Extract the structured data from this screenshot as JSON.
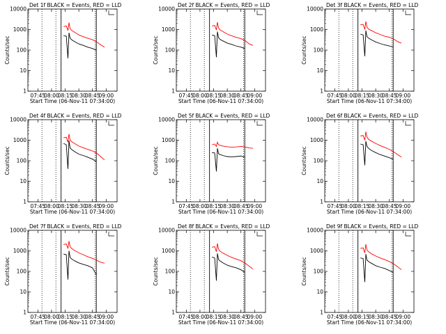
{
  "chart_data": [
    {
      "type": "line",
      "title": "Det 1f BLACK = Events, RED = LLD",
      "xlabel": "Start Time (06-Nov-11 07:34:00)",
      "ylabel": "Counts/sec",
      "x_ticks": [
        "07:45",
        "08:00",
        "08:15",
        "08:30",
        "08:45",
        "09:00"
      ],
      "y_ticks": [
        "1",
        "10",
        "100",
        "1000",
        "10000"
      ],
      "yscale": "log",
      "ylim": [
        1,
        10000
      ],
      "series": [
        {
          "color": "#000000",
          "x": [
            8.22,
            8.27,
            8.3,
            8.32,
            8.34,
            8.37,
            8.42,
            8.5,
            8.58,
            8.66,
            8.75,
            8.82
          ],
          "values": [
            500,
            480,
            40,
            700,
            380,
            320,
            260,
            200,
            170,
            140,
            120,
            100
          ]
        },
        {
          "color": "#ff0000",
          "x": [
            8.22,
            8.27,
            8.3,
            8.32,
            8.34,
            8.37,
            8.42,
            8.5,
            8.58,
            8.66,
            8.75,
            8.82,
            8.9,
            8.97
          ],
          "values": [
            1400,
            1500,
            900,
            2200,
            1100,
            900,
            750,
            550,
            450,
            380,
            320,
            260,
            180,
            140
          ]
        }
      ]
    },
    {
      "type": "line",
      "title": "Det 2f BLACK = Events, RED = LLD",
      "xlabel": "Start Time (06-Nov-11 07:34:00)",
      "ylabel": "Counts/sec",
      "x_ticks": [
        "07:45",
        "08:00",
        "08:15",
        "08:30",
        "08:45",
        "09:00"
      ],
      "y_ticks": [
        "1",
        "10",
        "100",
        "1000",
        "10000"
      ],
      "yscale": "log",
      "ylim": [
        1,
        10000
      ],
      "series": [
        {
          "color": "#000000",
          "x": [
            8.22,
            8.27,
            8.3,
            8.32,
            8.34,
            8.37,
            8.42,
            8.5,
            8.58,
            8.66,
            8.75,
            8.82
          ],
          "values": [
            550,
            500,
            45,
            800,
            400,
            330,
            280,
            220,
            190,
            160,
            140,
            120
          ]
        },
        {
          "color": "#ff0000",
          "x": [
            8.22,
            8.27,
            8.3,
            8.32,
            8.34,
            8.37,
            8.42,
            8.5,
            8.58,
            8.66,
            8.75,
            8.82,
            8.9,
            8.97
          ],
          "values": [
            1500,
            1600,
            950,
            2300,
            1200,
            950,
            800,
            600,
            500,
            420,
            360,
            300,
            200,
            170
          ]
        }
      ]
    },
    {
      "type": "line",
      "title": "Det 3f BLACK = Events, RED = LLD",
      "xlabel": "Start Time (06-Nov-11 07:34:00)",
      "ylabel": "Counts/sec",
      "x_ticks": [
        "07:45",
        "08:00",
        "08:15",
        "08:30",
        "08:45",
        "09:00"
      ],
      "y_ticks": [
        "1",
        "10",
        "100",
        "1000",
        "10000"
      ],
      "yscale": "log",
      "ylim": [
        1,
        10000
      ],
      "series": [
        {
          "color": "#000000",
          "x": [
            8.22,
            8.27,
            8.3,
            8.32,
            8.34,
            8.37,
            8.42,
            8.5,
            8.58,
            8.66,
            8.75,
            8.82
          ],
          "values": [
            600,
            550,
            50,
            900,
            450,
            380,
            320,
            250,
            210,
            180,
            160,
            140
          ]
        },
        {
          "color": "#ff0000",
          "x": [
            8.22,
            8.27,
            8.3,
            8.32,
            8.34,
            8.37,
            8.42,
            8.5,
            8.58,
            8.66,
            8.75,
            8.82,
            8.9,
            8.97
          ],
          "values": [
            1700,
            1800,
            1000,
            2500,
            1300,
            1050,
            900,
            700,
            580,
            480,
            420,
            360,
            260,
            220
          ]
        }
      ]
    },
    {
      "type": "line",
      "title": "Det 4f BLACK = Events, RED = LLD",
      "xlabel": "Start Time (06-Nov-11 07:34:00)",
      "ylabel": "Counts/sec",
      "x_ticks": [
        "07:45",
        "08:00",
        "08:15",
        "08:30",
        "08:45",
        "09:00"
      ],
      "y_ticks": [
        "1",
        "10",
        "100",
        "1000",
        "10000"
      ],
      "yscale": "log",
      "ylim": [
        1,
        10000
      ],
      "series": [
        {
          "color": "#000000",
          "x": [
            8.22,
            8.27,
            8.3,
            8.32,
            8.34,
            8.37,
            8.42,
            8.5,
            8.58,
            8.66,
            8.75,
            8.82
          ],
          "values": [
            700,
            600,
            40,
            950,
            420,
            350,
            280,
            210,
            180,
            150,
            120,
            90
          ]
        },
        {
          "color": "#ff0000",
          "x": [
            8.22,
            8.27,
            8.3,
            8.32,
            8.34,
            8.37,
            8.42,
            8.5,
            8.58,
            8.66,
            8.75,
            8.82,
            8.9,
            8.97
          ],
          "values": [
            1300,
            1400,
            800,
            2000,
            1000,
            850,
            700,
            520,
            430,
            360,
            300,
            240,
            160,
            110
          ]
        }
      ]
    },
    {
      "type": "line",
      "title": "Det 5f BLACK = Events, RED = LLD",
      "xlabel": "Start Time (06-Nov-11 07:34:00)",
      "ylabel": "Counts/sec",
      "x_ticks": [
        "07:45",
        "08:00",
        "08:15",
        "08:30",
        "08:45",
        "09:00"
      ],
      "y_ticks": [
        "1",
        "10",
        "100",
        "1000",
        "10000"
      ],
      "yscale": "log",
      "ylim": [
        1,
        10000
      ],
      "series": [
        {
          "color": "#000000",
          "x": [
            8.22,
            8.27,
            8.3,
            8.32,
            8.34,
            8.37,
            8.42,
            8.5,
            8.58,
            8.66,
            8.75,
            8.82
          ],
          "values": [
            250,
            240,
            30,
            400,
            220,
            200,
            180,
            160,
            155,
            160,
            170,
            150
          ]
        },
        {
          "color": "#ff0000",
          "x": [
            8.22,
            8.27,
            8.3,
            8.32,
            8.34,
            8.37,
            8.42,
            8.5,
            8.58,
            8.66,
            8.75,
            8.82,
            8.9,
            8.97
          ],
          "values": [
            600,
            650,
            500,
            800,
            600,
            560,
            520,
            480,
            460,
            470,
            500,
            470,
            420,
            400
          ]
        }
      ]
    },
    {
      "type": "line",
      "title": "Det 6f BLACK = Events, RED = LLD",
      "xlabel": "Start Time (06-Nov-11 07:34:00)",
      "ylabel": "Counts/sec",
      "x_ticks": [
        "07:45",
        "08:00",
        "08:15",
        "08:30",
        "08:45",
        "09:00"
      ],
      "y_ticks": [
        "1",
        "10",
        "100",
        "1000",
        "10000"
      ],
      "yscale": "log",
      "ylim": [
        1,
        10000
      ],
      "series": [
        {
          "color": "#000000",
          "x": [
            8.22,
            8.27,
            8.3,
            8.32,
            8.34,
            8.37,
            8.42,
            8.5,
            8.58,
            8.66,
            8.75,
            8.82
          ],
          "values": [
            650,
            600,
            60,
            900,
            500,
            400,
            320,
            250,
            200,
            170,
            140,
            120
          ]
        },
        {
          "color": "#ff0000",
          "x": [
            8.22,
            8.27,
            8.3,
            8.32,
            8.34,
            8.37,
            8.42,
            8.5,
            8.58,
            8.66,
            8.75,
            8.82,
            8.9,
            8.97
          ],
          "values": [
            1600,
            1700,
            1000,
            2600,
            1400,
            1100,
            900,
            700,
            550,
            450,
            360,
            280,
            200,
            150
          ]
        }
      ]
    },
    {
      "type": "line",
      "title": "Det 7f BLACK = Events, RED = LLD",
      "xlabel": "Start Time (06-Nov-11 07:34:00)",
      "ylabel": "Counts/sec",
      "x_ticks": [
        "07:45",
        "08:00",
        "08:15",
        "08:30",
        "08:45",
        "09:00"
      ],
      "y_ticks": [
        "1",
        "10",
        "100",
        "1000",
        "10000"
      ],
      "yscale": "log",
      "ylim": [
        1,
        10000
      ],
      "series": [
        {
          "color": "#000000",
          "x": [
            8.22,
            8.27,
            8.3,
            8.32,
            8.34,
            8.37,
            8.42,
            8.5,
            8.58,
            8.66,
            8.75,
            8.82
          ],
          "values": [
            700,
            650,
            40,
            1000,
            480,
            400,
            330,
            260,
            220,
            190,
            150,
            70
          ]
        },
        {
          "color": "#ff0000",
          "x": [
            8.22,
            8.27,
            8.3,
            8.32,
            8.34,
            8.37,
            8.42,
            8.5,
            8.58,
            8.66,
            8.75,
            8.82,
            8.9,
            8.97
          ],
          "values": [
            2000,
            2200,
            1300,
            3000,
            1600,
            1300,
            1050,
            800,
            650,
            520,
            430,
            350,
            280,
            250
          ]
        }
      ]
    },
    {
      "type": "line",
      "title": "Det 8f BLACK = Events, RED = LLD",
      "xlabel": "Start Time (06-Nov-11 07:34:00)",
      "ylabel": "Counts/sec",
      "x_ticks": [
        "07:45",
        "08:00",
        "08:15",
        "08:30",
        "08:45",
        "09:00"
      ],
      "y_ticks": [
        "1",
        "10",
        "100",
        "1000",
        "10000"
      ],
      "yscale": "log",
      "ylim": [
        1,
        10000
      ],
      "series": [
        {
          "color": "#000000",
          "x": [
            8.22,
            8.27,
            8.3,
            8.32,
            8.34,
            8.37,
            8.42,
            8.5,
            8.58,
            8.66,
            8.75,
            8.82
          ],
          "values": [
            500,
            450,
            35,
            750,
            380,
            320,
            260,
            200,
            170,
            150,
            120,
            90
          ]
        },
        {
          "color": "#ff0000",
          "x": [
            8.22,
            8.27,
            8.3,
            8.32,
            8.34,
            8.37,
            8.42,
            8.5,
            8.58,
            8.66,
            8.75,
            8.82,
            8.9,
            8.97
          ],
          "values": [
            1500,
            1600,
            900,
            2300,
            1200,
            950,
            780,
            600,
            480,
            400,
            330,
            260,
            180,
            130
          ]
        }
      ]
    },
    {
      "type": "line",
      "title": "Det 9f BLACK = Events, RED = LLD",
      "xlabel": "Start Time (06-Nov-11 07:34:00)",
      "ylabel": "Counts/sec",
      "x_ticks": [
        "07:45",
        "08:00",
        "08:15",
        "08:30",
        "08:45",
        "09:00"
      ],
      "y_ticks": [
        "1",
        "10",
        "100",
        "1000",
        "10000"
      ],
      "yscale": "log",
      "ylim": [
        1,
        10000
      ],
      "series": [
        {
          "color": "#000000",
          "x": [
            8.22,
            8.27,
            8.3,
            8.32,
            8.34,
            8.37,
            8.42,
            8.5,
            8.58,
            8.66,
            8.75,
            8.82
          ],
          "values": [
            450,
            420,
            30,
            700,
            350,
            300,
            250,
            190,
            160,
            140,
            110,
            90
          ]
        },
        {
          "color": "#ff0000",
          "x": [
            8.22,
            8.27,
            8.3,
            8.32,
            8.34,
            8.37,
            8.42,
            8.5,
            8.58,
            8.66,
            8.75,
            8.82,
            8.9,
            8.97
          ],
          "values": [
            1300,
            1400,
            800,
            2100,
            1100,
            900,
            720,
            560,
            450,
            380,
            300,
            240,
            170,
            120
          ]
        }
      ]
    }
  ]
}
